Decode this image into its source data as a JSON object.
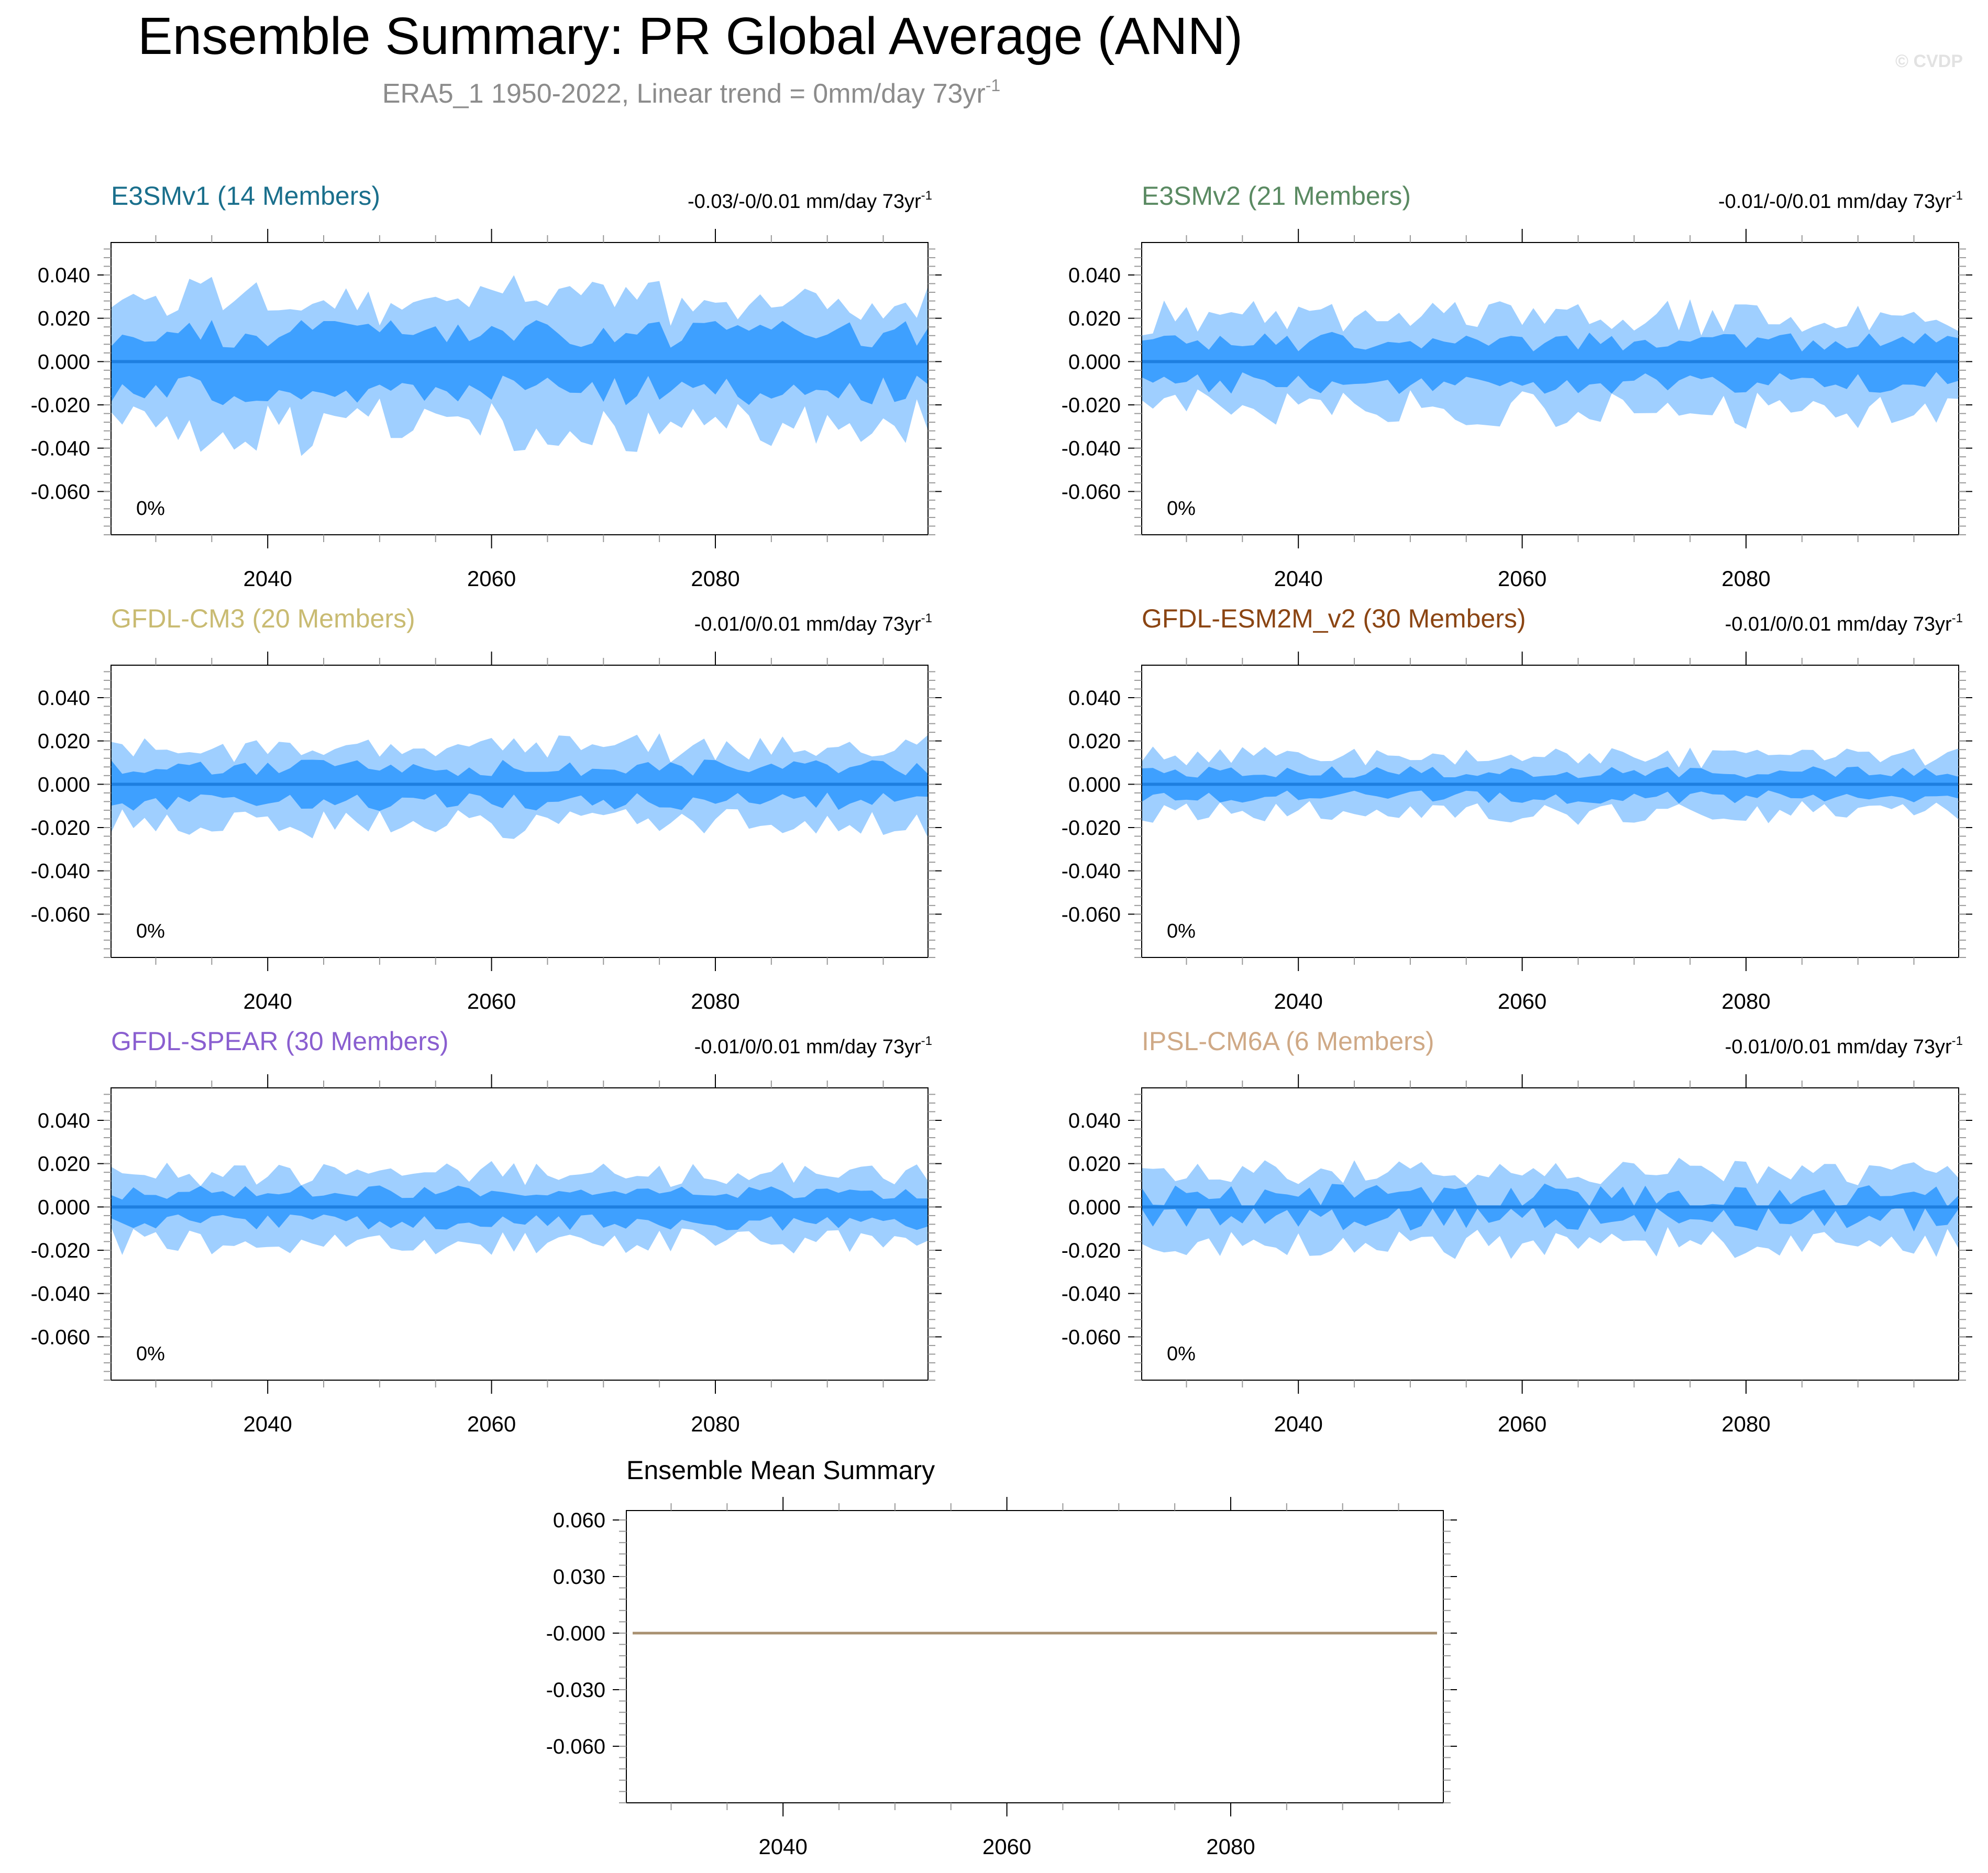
{
  "figure": {
    "title": "Ensemble Summary: PR Global Average (ANN)",
    "subtitle": "ERA5_1 1950-2022, Linear trend = 0mm/day 73yr",
    "subtitle_sup": "-1",
    "watermark": "© CVDP",
    "colors": {
      "band_outer": "#9fcfff",
      "band_inner": "#3ea0ff",
      "mean_line": "#1e7fe0",
      "ensemble_line": "#a89070",
      "subtitle": "#8c8c8c"
    }
  },
  "chart_data": [
    {
      "type": "area",
      "panel": "E3SMv1",
      "title": "E3SMv1 (14 Members)",
      "title_color": "#1a6f8c",
      "trend_label": "-0.03/-0/0.01 mm/day 73yr",
      "trend_sup": "-1",
      "annotation": "0%",
      "x_range": [
        2026,
        2099
      ],
      "ylim": [
        -0.08,
        0.055
      ],
      "yticks": [
        "0.040",
        "0.020",
        "0.000",
        "-0.020",
        "-0.040",
        "-0.060"
      ],
      "ytick_values": [
        0.04,
        0.02,
        0.0,
        -0.02,
        -0.04,
        -0.06
      ],
      "xticks": [
        2040,
        2060,
        2080
      ],
      "amplitude": 1.6,
      "seed": 11
    },
    {
      "type": "area",
      "panel": "E3SMv2",
      "title": "E3SMv2 (21 Members)",
      "title_color": "#5a8a62",
      "trend_label": "-0.01/-0/0.01 mm/day 73yr",
      "trend_sup": "-1",
      "annotation": "0%",
      "x_range": [
        2026,
        2099
      ],
      "ylim": [
        -0.08,
        0.055
      ],
      "yticks": [
        "0.040",
        "0.020",
        "0.000",
        "-0.020",
        "-0.040",
        "-0.060"
      ],
      "ytick_values": [
        0.04,
        0.02,
        0.0,
        -0.02,
        -0.04,
        -0.06
      ],
      "xticks": [
        2040,
        2060,
        2080
      ],
      "amplitude": 1.15,
      "seed": 23
    },
    {
      "type": "area",
      "panel": "GFDL-CM3",
      "title": "GFDL-CM3 (20 Members)",
      "title_color": "#c9bb72",
      "trend_label": "-0.01/0/0.01 mm/day 73yr",
      "trend_sup": "-1",
      "annotation": "0%",
      "x_range": [
        2026,
        2099
      ],
      "ylim": [
        -0.08,
        0.055
      ],
      "yticks": [
        "0.040",
        "0.020",
        "0.000",
        "-0.020",
        "-0.040",
        "-0.060"
      ],
      "ytick_values": [
        0.04,
        0.02,
        0.0,
        -0.02,
        -0.04,
        -0.06
      ],
      "xticks": [
        2040,
        2060,
        2080
      ],
      "amplitude": 0.95,
      "seed": 37
    },
    {
      "type": "area",
      "panel": "GFDL-ESM2M_v2",
      "title": "GFDL-ESM2M_v2 (30 Members)",
      "title_color": "#8b4513",
      "trend_label": "-0.01/0/0.01 mm/day 73yr",
      "trend_sup": "-1",
      "annotation": "0%",
      "x_range": [
        2026,
        2099
      ],
      "ylim": [
        -0.08,
        0.055
      ],
      "yticks": [
        "0.040",
        "0.020",
        "0.000",
        "-0.020",
        "-0.040",
        "-0.060"
      ],
      "ytick_values": [
        0.04,
        0.02,
        0.0,
        -0.02,
        -0.04,
        -0.06
      ],
      "xticks": [
        2040,
        2060,
        2080
      ],
      "amplitude": 0.7,
      "seed": 41
    },
    {
      "type": "area",
      "panel": "GFDL-SPEAR",
      "title": "GFDL-SPEAR (30 Members)",
      "title_color": "#8a5fd0",
      "trend_label": "-0.01/0/0.01 mm/day 73yr",
      "trend_sup": "-1",
      "annotation": "0%",
      "x_range": [
        2026,
        2099
      ],
      "ylim": [
        -0.08,
        0.055
      ],
      "yticks": [
        "0.040",
        "0.020",
        "0.000",
        "-0.020",
        "-0.040",
        "-0.060"
      ],
      "ytick_values": [
        0.04,
        0.02,
        0.0,
        -0.02,
        -0.04,
        -0.06
      ],
      "xticks": [
        2040,
        2060,
        2080
      ],
      "amplitude": 0.85,
      "seed": 53
    },
    {
      "type": "area",
      "panel": "IPSL-CM6A",
      "title": "IPSL-CM6A (6 Members)",
      "title_color": "#cfa986",
      "trend_label": "-0.01/0/0.01 mm/day 73yr",
      "trend_sup": "-1",
      "annotation": "0%",
      "x_range": [
        2026,
        2099
      ],
      "ylim": [
        -0.08,
        0.055
      ],
      "yticks": [
        "0.040",
        "0.020",
        "0.000",
        "-0.020",
        "-0.040",
        "-0.060"
      ],
      "ytick_values": [
        0.04,
        0.02,
        0.0,
        -0.02,
        -0.04,
        -0.06
      ],
      "xticks": [
        2040,
        2060,
        2080
      ],
      "amplitude": 0.9,
      "seed": 67,
      "sparse": true
    },
    {
      "type": "line",
      "panel": "Ensemble Mean Summary",
      "title": "Ensemble Mean Summary",
      "x_range": [
        2026,
        2099
      ],
      "ylim": [
        -0.09,
        0.065
      ],
      "yticks": [
        "0.060",
        "0.030",
        "-0.000",
        "-0.030",
        "-0.060"
      ],
      "ytick_values": [
        0.06,
        0.03,
        0.0,
        -0.03,
        -0.06
      ],
      "xticks": [
        2040,
        2060,
        2080
      ],
      "series": [
        {
          "name": "ensemble mean",
          "x": [
            2026,
            2099
          ],
          "values": [
            0.0,
            0.0
          ]
        }
      ]
    }
  ]
}
